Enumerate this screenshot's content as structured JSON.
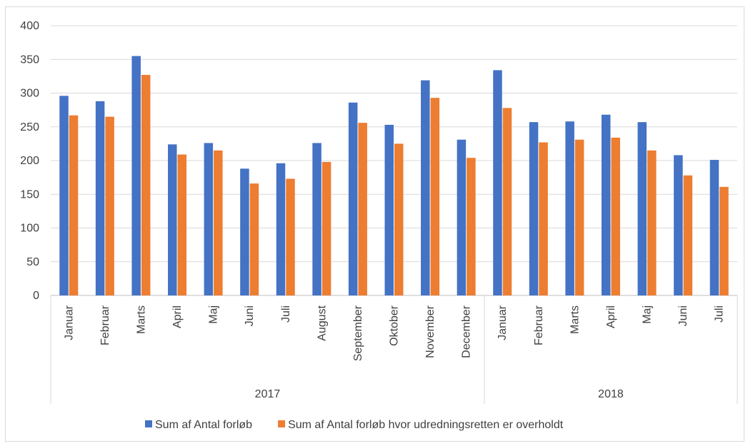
{
  "chart_data": {
    "type": "bar",
    "title": "",
    "xlabel": "",
    "ylabel": "",
    "ylim": [
      0,
      400
    ],
    "yticks": [
      0,
      50,
      100,
      150,
      200,
      250,
      300,
      350,
      400
    ],
    "grid": true,
    "legend_position": "bottom",
    "groups": [
      {
        "label": "2017",
        "categories": [
          "Januar",
          "Februar",
          "Marts",
          "April",
          "Maj",
          "Juni",
          "Juli",
          "August",
          "September",
          "Oktober",
          "November",
          "December"
        ]
      },
      {
        "label": "2018",
        "categories": [
          "Januar",
          "Februar",
          "Marts",
          "April",
          "Maj",
          "Juni",
          "Juli"
        ]
      }
    ],
    "series": [
      {
        "name": "Sum af Antal forløb",
        "color": "#4472C4",
        "values": [
          296,
          288,
          355,
          224,
          226,
          188,
          196,
          226,
          286,
          253,
          319,
          231,
          334,
          257,
          258,
          268,
          257,
          208,
          201
        ]
      },
      {
        "name": "Sum af Antal forløb hvor udredningsretten er overholdt",
        "color": "#ED7D31",
        "values": [
          267,
          265,
          327,
          209,
          215,
          166,
          173,
          198,
          256,
          225,
          293,
          204,
          278,
          227,
          231,
          234,
          215,
          178,
          161
        ]
      }
    ]
  }
}
